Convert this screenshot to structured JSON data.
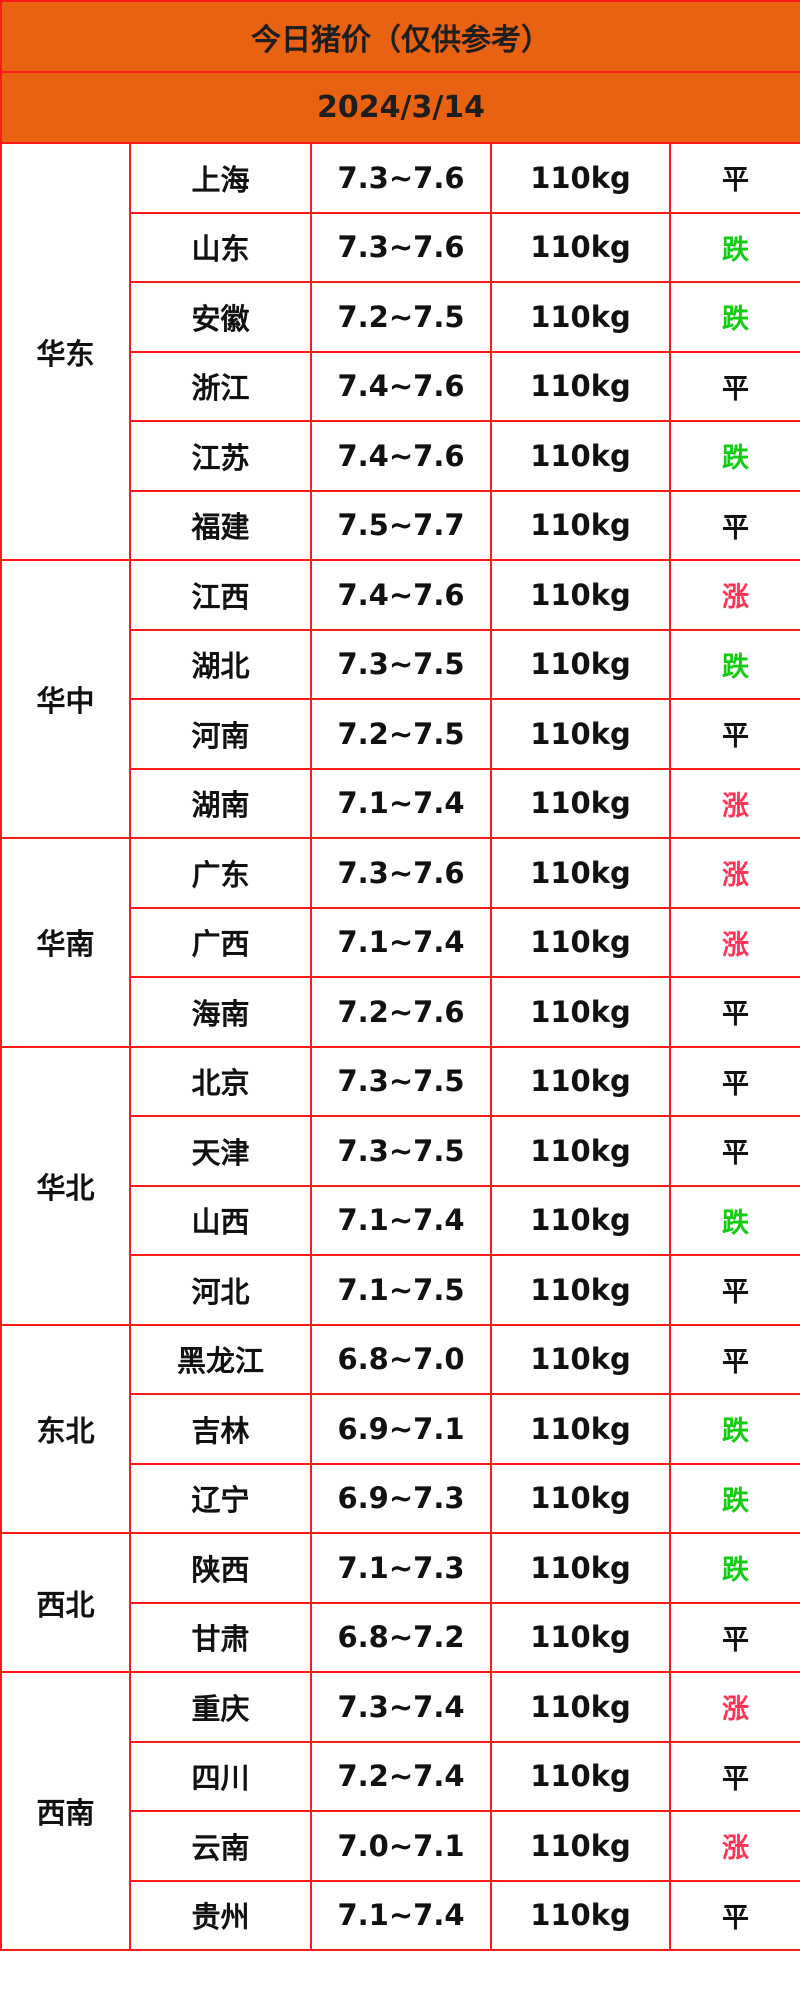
{
  "title": "今日猪价（仅供参考）",
  "date": "2024/3/14",
  "colors": {
    "header_bg": "#e96212",
    "border": "#ff1a1a",
    "up": "#ff3355",
    "down": "#11cc11",
    "flat": "#111111"
  },
  "regions": [
    {
      "name": "华东",
      "rows": [
        {
          "province": "上海",
          "price": "7.3~7.6",
          "weight": "110kg",
          "trend": "平"
        },
        {
          "province": "山东",
          "price": "7.3~7.6",
          "weight": "110kg",
          "trend": "跌"
        },
        {
          "province": "安徽",
          "price": "7.2~7.5",
          "weight": "110kg",
          "trend": "跌"
        },
        {
          "province": "浙江",
          "price": "7.4~7.6",
          "weight": "110kg",
          "trend": "平"
        },
        {
          "province": "江苏",
          "price": "7.4~7.6",
          "weight": "110kg",
          "trend": "跌"
        },
        {
          "province": "福建",
          "price": "7.5~7.7",
          "weight": "110kg",
          "trend": "平"
        }
      ]
    },
    {
      "name": "华中",
      "rows": [
        {
          "province": "江西",
          "price": "7.4~7.6",
          "weight": "110kg",
          "trend": "涨"
        },
        {
          "province": "湖北",
          "price": "7.3~7.5",
          "weight": "110kg",
          "trend": "跌"
        },
        {
          "province": "河南",
          "price": "7.2~7.5",
          "weight": "110kg",
          "trend": "平"
        },
        {
          "province": "湖南",
          "price": "7.1~7.4",
          "weight": "110kg",
          "trend": "涨"
        }
      ]
    },
    {
      "name": "华南",
      "rows": [
        {
          "province": "广东",
          "price": "7.3~7.6",
          "weight": "110kg",
          "trend": "涨"
        },
        {
          "province": "广西",
          "price": "7.1~7.4",
          "weight": "110kg",
          "trend": "涨"
        },
        {
          "province": "海南",
          "price": "7.2~7.6",
          "weight": "110kg",
          "trend": "平"
        }
      ]
    },
    {
      "name": "华北",
      "rows": [
        {
          "province": "北京",
          "price": "7.3~7.5",
          "weight": "110kg",
          "trend": "平"
        },
        {
          "province": "天津",
          "price": "7.3~7.5",
          "weight": "110kg",
          "trend": "平"
        },
        {
          "province": "山西",
          "price": "7.1~7.4",
          "weight": "110kg",
          "trend": "跌"
        },
        {
          "province": "河北",
          "price": "7.1~7.5",
          "weight": "110kg",
          "trend": "平"
        }
      ]
    },
    {
      "name": "东北",
      "rows": [
        {
          "province": "黑龙江",
          "price": "6.8~7.0",
          "weight": "110kg",
          "trend": "平"
        },
        {
          "province": "吉林",
          "price": "6.9~7.1",
          "weight": "110kg",
          "trend": "跌"
        },
        {
          "province": "辽宁",
          "price": "6.9~7.3",
          "weight": "110kg",
          "trend": "跌"
        }
      ]
    },
    {
      "name": "西北",
      "rows": [
        {
          "province": "陕西",
          "price": "7.1~7.3",
          "weight": "110kg",
          "trend": "跌"
        },
        {
          "province": "甘肃",
          "price": "6.8~7.2",
          "weight": "110kg",
          "trend": "平"
        }
      ]
    },
    {
      "name": "西南",
      "rows": [
        {
          "province": "重庆",
          "price": "7.3~7.4",
          "weight": "110kg",
          "trend": "涨"
        },
        {
          "province": "四川",
          "price": "7.2~7.4",
          "weight": "110kg",
          "trend": "平"
        },
        {
          "province": "云南",
          "price": "7.0~7.1",
          "weight": "110kg",
          "trend": "涨"
        },
        {
          "province": "贵州",
          "price": "7.1~7.4",
          "weight": "110kg",
          "trend": "平"
        }
      ]
    }
  ]
}
